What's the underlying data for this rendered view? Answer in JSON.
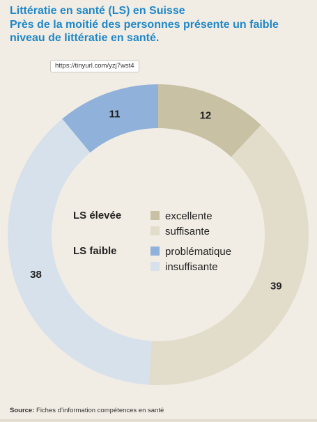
{
  "title": {
    "line1": "Littératie en santé (LS) en Suisse",
    "line2": "Près de la moitié des personnes présente un faible",
    "line3": "niveau de littératie en santé."
  },
  "url_badge": "https://tinyurl.com/yzj7wst4",
  "footer": {
    "prefix": "Source:",
    "text": "Fiches d’information compétences en santé"
  },
  "chart_data": {
    "type": "pie",
    "variant": "donut",
    "slices": [
      {
        "label": "excellente",
        "value": 12,
        "color": "#c8c1a4"
      },
      {
        "label": "suffisante",
        "value": 39,
        "color": "#e2dccb"
      },
      {
        "label": "insuffisante",
        "value": 38,
        "color": "#d7e1ec"
      },
      {
        "label": "problématique",
        "value": 11,
        "color": "#8fb1da"
      }
    ],
    "legend": {
      "placement": "center",
      "groups": [
        {
          "label": "LS élevée",
          "items": [
            0,
            1
          ]
        },
        {
          "label": "LS faible",
          "items": [
            3,
            2
          ]
        }
      ]
    }
  }
}
